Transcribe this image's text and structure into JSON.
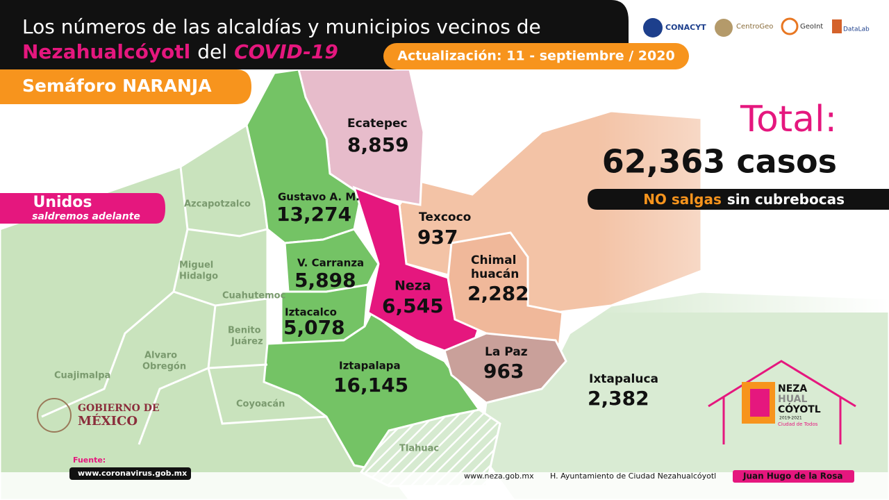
{
  "header": {
    "title_line1": "Los números de las alcaldías y municipios vecinos de",
    "title_highlight": "Nezahualcóyotl",
    "title_mid": "del",
    "title_covid": "COVID-19",
    "update": "Actualización: 11 - septiembre / 2020",
    "semaforo": "Semáforo NARANJA"
  },
  "logos": [
    "CONACYT",
    "CentroGeo",
    "GeoInt",
    "DataLab"
  ],
  "slogan": {
    "line1": "Unidos",
    "line2": "saldremos adelante"
  },
  "total": {
    "label": "Total:",
    "value": "62,363 casos"
  },
  "message": {
    "part1": "NO salgas",
    "part2": "sin cubrebocas"
  },
  "regions": [
    {
      "name": [
        "Ecatepec"
      ],
      "cases": "8,859"
    },
    {
      "name": [
        "Gustavo A. M."
      ],
      "cases": "13,274"
    },
    {
      "name": [
        "V. Carranza"
      ],
      "cases": "5,898"
    },
    {
      "name": [
        "Iztacalco"
      ],
      "cases": "5,078"
    },
    {
      "name": [
        "Neza"
      ],
      "cases": "6,545"
    },
    {
      "name": [
        "Iztapalapa"
      ],
      "cases": "16,145"
    },
    {
      "name": [
        "Texcoco"
      ],
      "cases": "937"
    },
    {
      "name": [
        "Chimal",
        "huacán"
      ],
      "cases": "2,282"
    },
    {
      "name": [
        "La Paz"
      ],
      "cases": "963"
    },
    {
      "name": [
        "Ixtapaluca"
      ],
      "cases": "2,382"
    }
  ],
  "other_areas": [
    [
      "Azcapotzalco"
    ],
    [
      "Miguel",
      "Hidalgo"
    ],
    [
      "Cuahutemoc"
    ],
    [
      "Benito",
      "Juárez"
    ],
    [
      "Alvaro",
      "Obregón"
    ],
    [
      "Cuajimalpa"
    ],
    [
      "Coyoacán"
    ],
    [
      "Tlahuac"
    ]
  ],
  "government": [
    "GOBIERNO DE",
    "MÉXICO"
  ],
  "house_logo": {
    "line1": "NEZA",
    "line2": "HUAL",
    "line3": "CÓYOTL",
    "years": "2019-2021",
    "tag": "Ciudad de Todos"
  },
  "footer": {
    "source_label": "Fuente:",
    "source": "www.coronavirus.gob.mx",
    "links": [
      "www.neza.gob.mx",
      "H. Ayuntamiento de Ciudad Nezahualcóyotl",
      "Juan Hugo de la Rosa"
    ]
  }
}
